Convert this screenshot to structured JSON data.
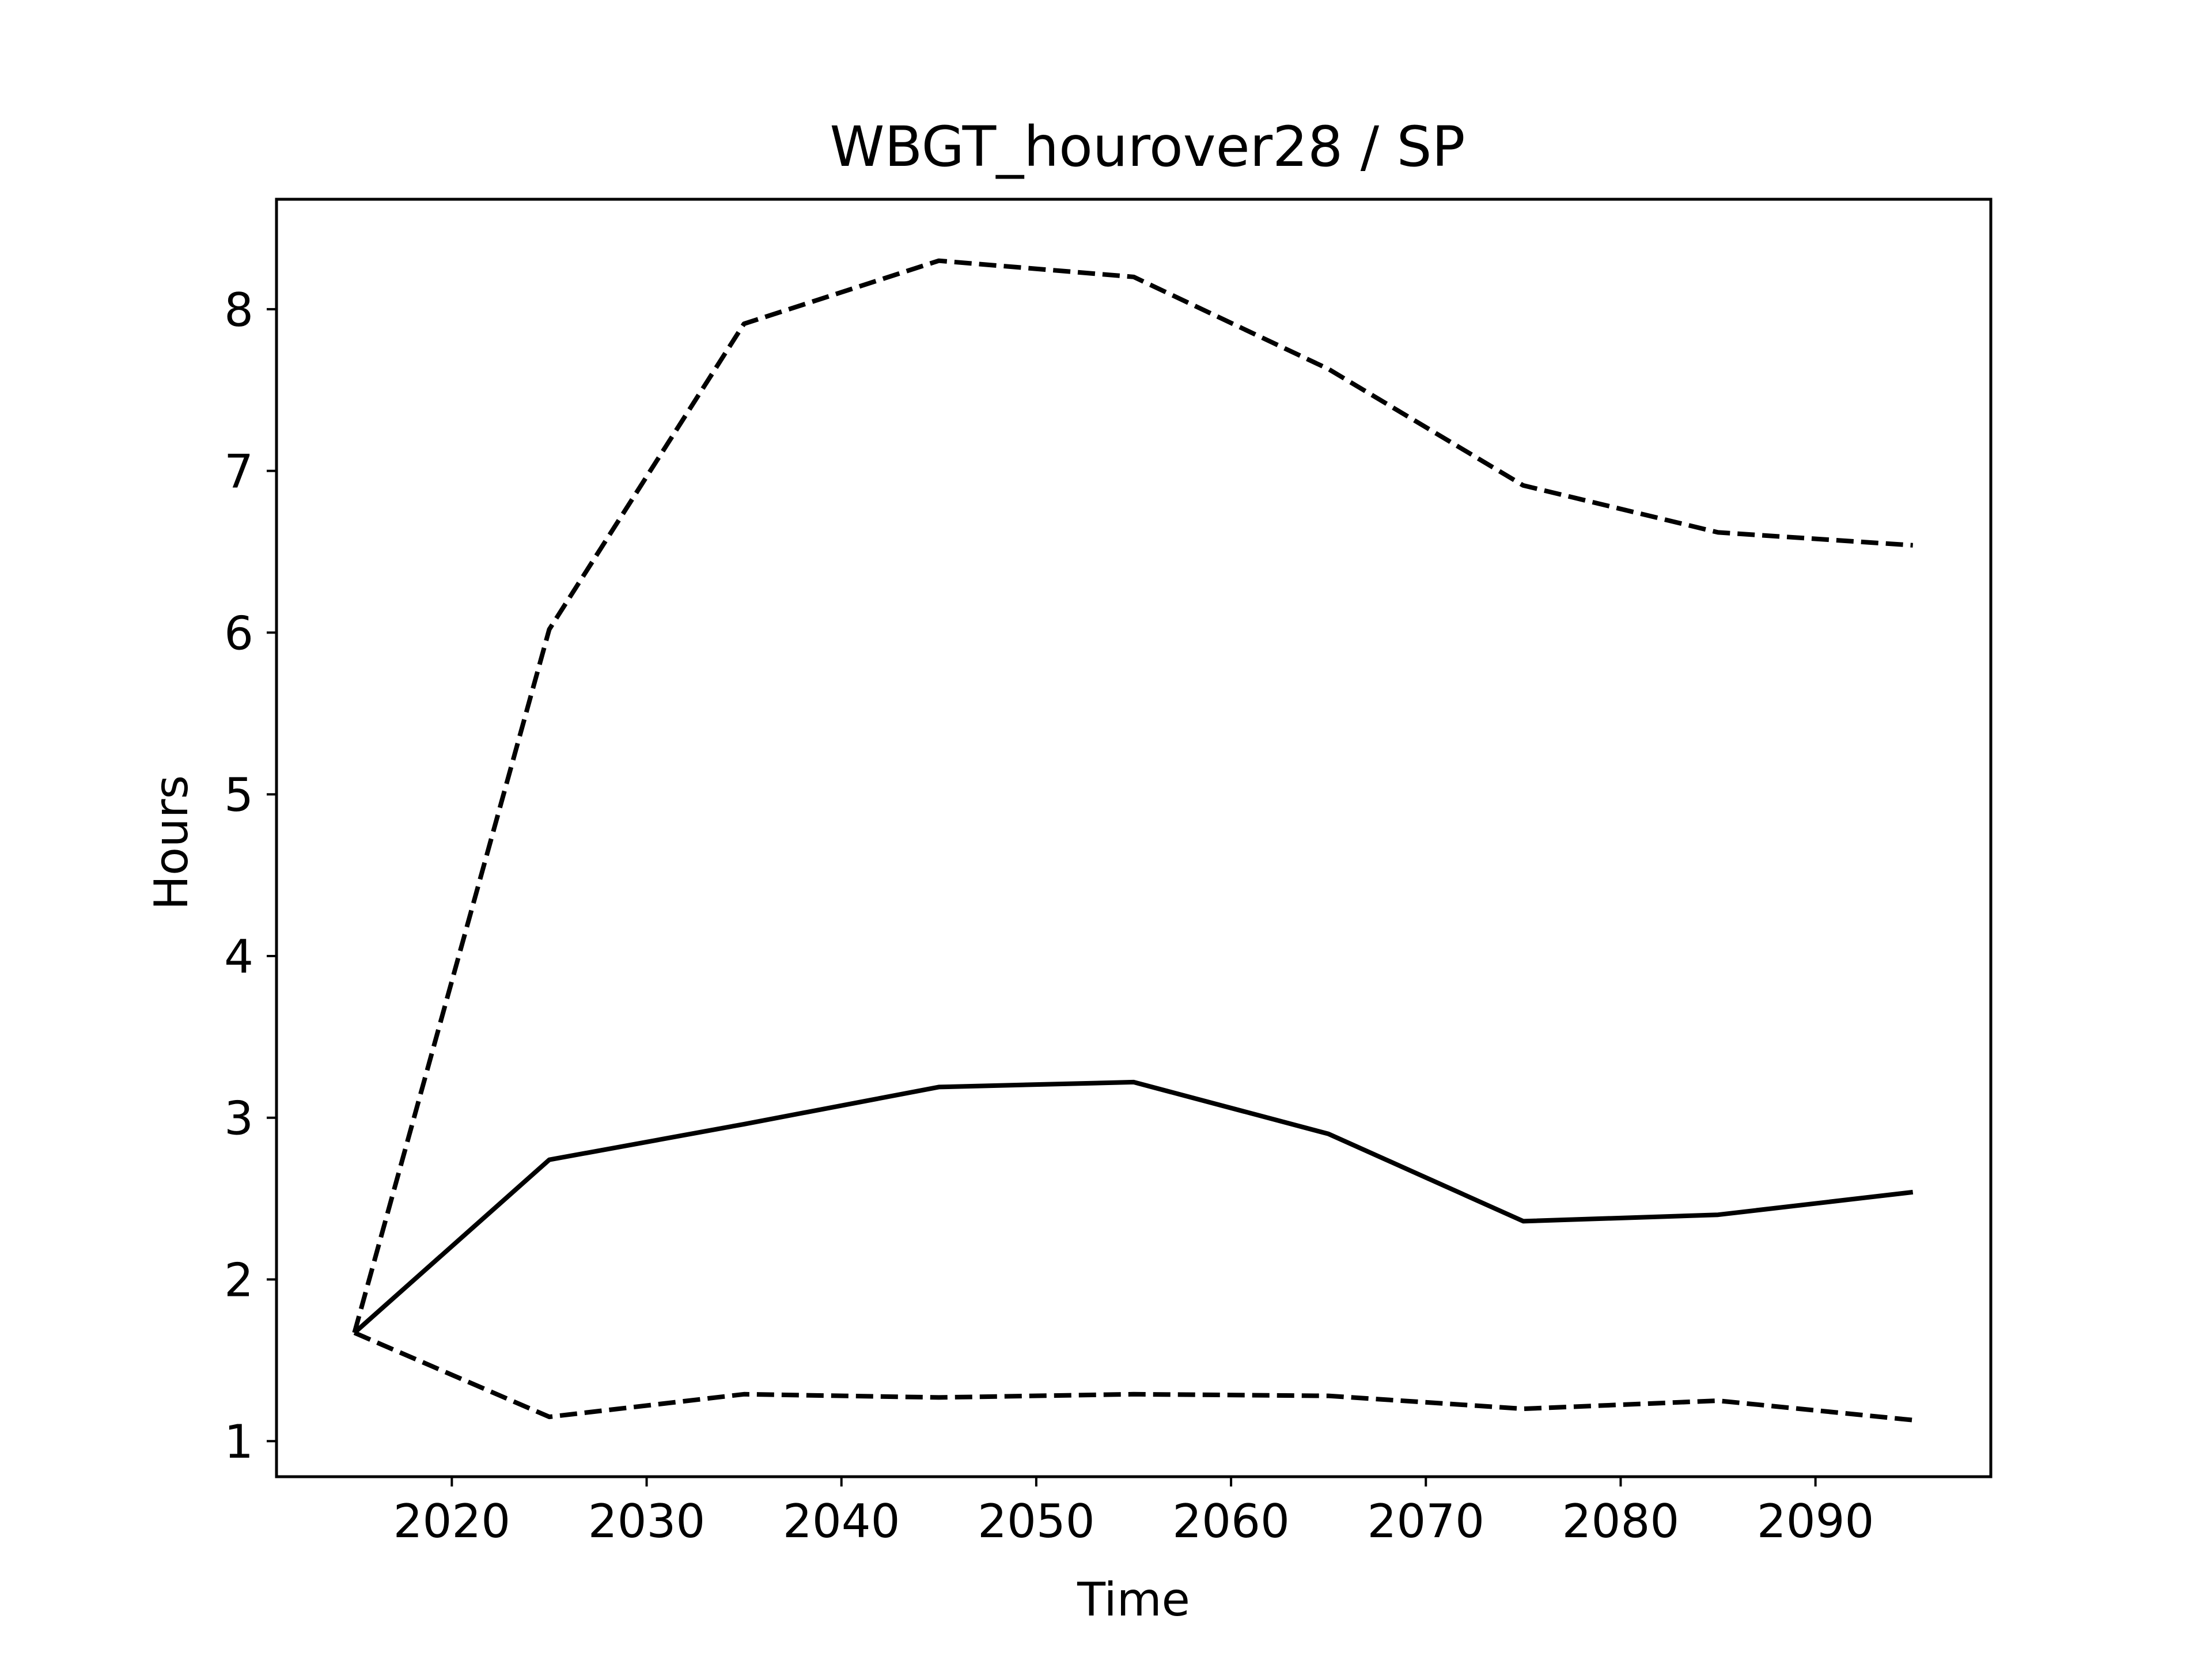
{
  "chart_data": {
    "type": "line",
    "title": "WBGT_hourover28 / SP",
    "xlabel": "Time",
    "ylabel": "Hours",
    "xlim": [
      2011,
      2099
    ],
    "ylim": [
      0.78,
      8.68
    ],
    "xticks": [
      2020,
      2030,
      2040,
      2050,
      2060,
      2070,
      2080,
      2090
    ],
    "xtick_labels": [
      "2020",
      "2030",
      "2040",
      "2050",
      "2060",
      "2070",
      "2080",
      "2090"
    ],
    "yticks": [
      1,
      2,
      3,
      4,
      5,
      6,
      7,
      8
    ],
    "ytick_labels": [
      "1",
      "2",
      "3",
      "4",
      "5",
      "6",
      "7",
      "8"
    ],
    "grid": false,
    "legend": "none",
    "x": [
      2015,
      2025,
      2035,
      2045,
      2055,
      2065,
      2075,
      2085,
      2095
    ],
    "series": [
      {
        "style": "dashed",
        "color": "#000000",
        "values": [
          1.67,
          6.02,
          7.91,
          8.3,
          8.2,
          7.63,
          6.91,
          6.62,
          6.54
        ]
      },
      {
        "style": "solid",
        "color": "#000000",
        "values": [
          1.67,
          2.74,
          2.96,
          3.19,
          3.22,
          2.9,
          2.36,
          2.4,
          2.54
        ]
      },
      {
        "style": "dashed",
        "color": "#000000",
        "values": [
          1.67,
          1.15,
          1.29,
          1.27,
          1.29,
          1.28,
          1.2,
          1.25,
          1.13
        ]
      }
    ]
  }
}
